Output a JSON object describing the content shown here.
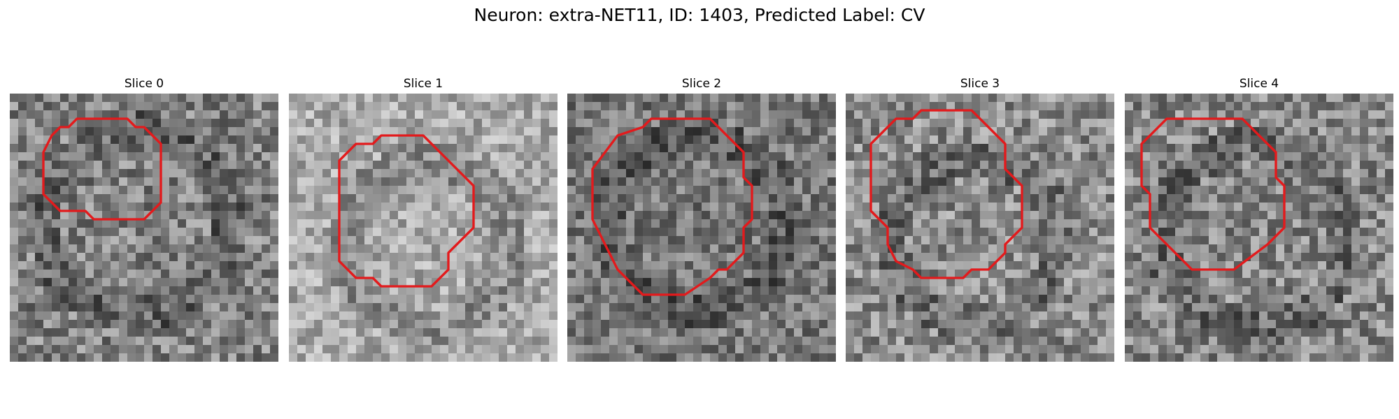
{
  "title": "Neuron: extra-NET11, ID: 1403, Predicted Label: CV",
  "outline_color": "#e31a1c",
  "slices": [
    {
      "label": "Slice 0",
      "seed": 11,
      "bright": [
        148,
        148,
        22
      ],
      "mean": 130,
      "contrast": 55,
      "pts": [
        [
          5,
          5
        ],
        [
          6,
          4
        ],
        [
          7,
          4
        ],
        [
          8,
          3
        ],
        [
          14,
          3
        ],
        [
          15,
          4
        ],
        [
          16,
          4
        ],
        [
          18,
          6
        ],
        [
          18,
          13
        ],
        [
          16,
          15
        ],
        [
          10,
          15
        ],
        [
          9,
          14
        ],
        [
          6,
          14
        ],
        [
          4,
          12
        ],
        [
          4,
          7
        ]
      ]
    },
    {
      "label": "Slice 1",
      "seed": 23,
      "bright": [
        160,
        175,
        20
      ],
      "mean": 170,
      "contrast": 45,
      "pts": [
        [
          6,
          8
        ],
        [
          8,
          6
        ],
        [
          10,
          6
        ],
        [
          11,
          5
        ],
        [
          16,
          5
        ],
        [
          22,
          11
        ],
        [
          22,
          16
        ],
        [
          19,
          19
        ],
        [
          19,
          21
        ],
        [
          17,
          23
        ],
        [
          11,
          23
        ],
        [
          10,
          22
        ],
        [
          8,
          22
        ],
        [
          6,
          20
        ]
      ]
    },
    {
      "label": "Slice 2",
      "seed": 37,
      "bright": [
        150,
        150,
        21
      ],
      "mean": 120,
      "contrast": 50,
      "pts": [
        [
          3,
          9
        ],
        [
          6,
          5
        ],
        [
          9,
          4
        ],
        [
          10,
          3
        ],
        [
          17,
          3
        ],
        [
          21,
          7
        ],
        [
          21,
          10
        ],
        [
          22,
          11
        ],
        [
          22,
          15
        ],
        [
          21,
          16
        ],
        [
          21,
          19
        ],
        [
          19,
          21
        ],
        [
          18,
          21
        ],
        [
          17,
          22
        ],
        [
          14,
          24
        ],
        [
          9,
          24
        ],
        [
          6,
          21
        ],
        [
          3,
          15
        ]
      ]
    },
    {
      "label": "Slice 3",
      "seed": 51,
      "bright": [
        150,
        170,
        20
      ],
      "mean": 140,
      "contrast": 55,
      "pts": [
        [
          3,
          6
        ],
        [
          6,
          3
        ],
        [
          8,
          3
        ],
        [
          9,
          2
        ],
        [
          15,
          2
        ],
        [
          17,
          4
        ],
        [
          19,
          6
        ],
        [
          19,
          9
        ],
        [
          20,
          10
        ],
        [
          21,
          11
        ],
        [
          21,
          16
        ],
        [
          19,
          18
        ],
        [
          19,
          19
        ],
        [
          17,
          21
        ],
        [
          15,
          21
        ],
        [
          14,
          22
        ],
        [
          9,
          22
        ],
        [
          8,
          21
        ],
        [
          6,
          20
        ],
        [
          5,
          18
        ],
        [
          5,
          16
        ],
        [
          4,
          15
        ],
        [
          3,
          14
        ]
      ]
    },
    {
      "label": "Slice 4",
      "seed": 67,
      "bright": [
        150,
        165,
        22
      ],
      "mean": 135,
      "contrast": 55,
      "pts": [
        [
          2,
          6
        ],
        [
          5,
          3
        ],
        [
          14,
          3
        ],
        [
          18,
          7
        ],
        [
          18,
          10
        ],
        [
          19,
          11
        ],
        [
          19,
          16
        ],
        [
          17,
          18
        ],
        [
          13,
          21
        ],
        [
          8,
          21
        ],
        [
          6,
          19
        ],
        [
          3,
          16
        ],
        [
          3,
          12
        ],
        [
          2,
          11
        ]
      ]
    }
  ]
}
